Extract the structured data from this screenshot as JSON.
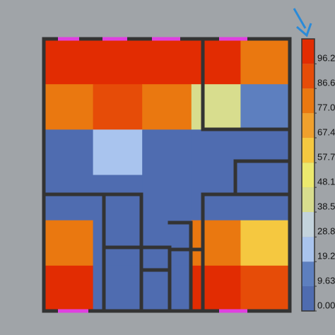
{
  "chart_data": {
    "type": "heatmap",
    "values": [
      [
        100,
        100,
        100,
        100,
        84
      ],
      [
        80,
        92,
        85,
        48,
        10
      ],
      [
        8,
        22,
        8,
        8,
        8
      ],
      [
        8,
        8,
        8,
        8,
        8
      ],
      [
        80,
        8,
        8,
        78,
        62
      ],
      [
        98,
        8,
        8,
        98,
        92
      ]
    ],
    "colors": [
      "#4f6cb0",
      "#5d7fbf",
      "#a9c4ee",
      "#c3d3dc",
      "#d8dd8e",
      "#ece96e",
      "#f5c840",
      "#f0a02c",
      "#ea7810",
      "#e64c08",
      "#e22c02"
    ],
    "zlim": [
      0,
      105.9
    ],
    "zticks": [
      {
        "value": 0,
        "label": "0.00"
      },
      9.63,
      19.2,
      28.8,
      38.5,
      48.1,
      57.7,
      67.4,
      {
        "value": 77,
        "label": "77.0"
      },
      86.6,
      96.2
    ]
  }
}
